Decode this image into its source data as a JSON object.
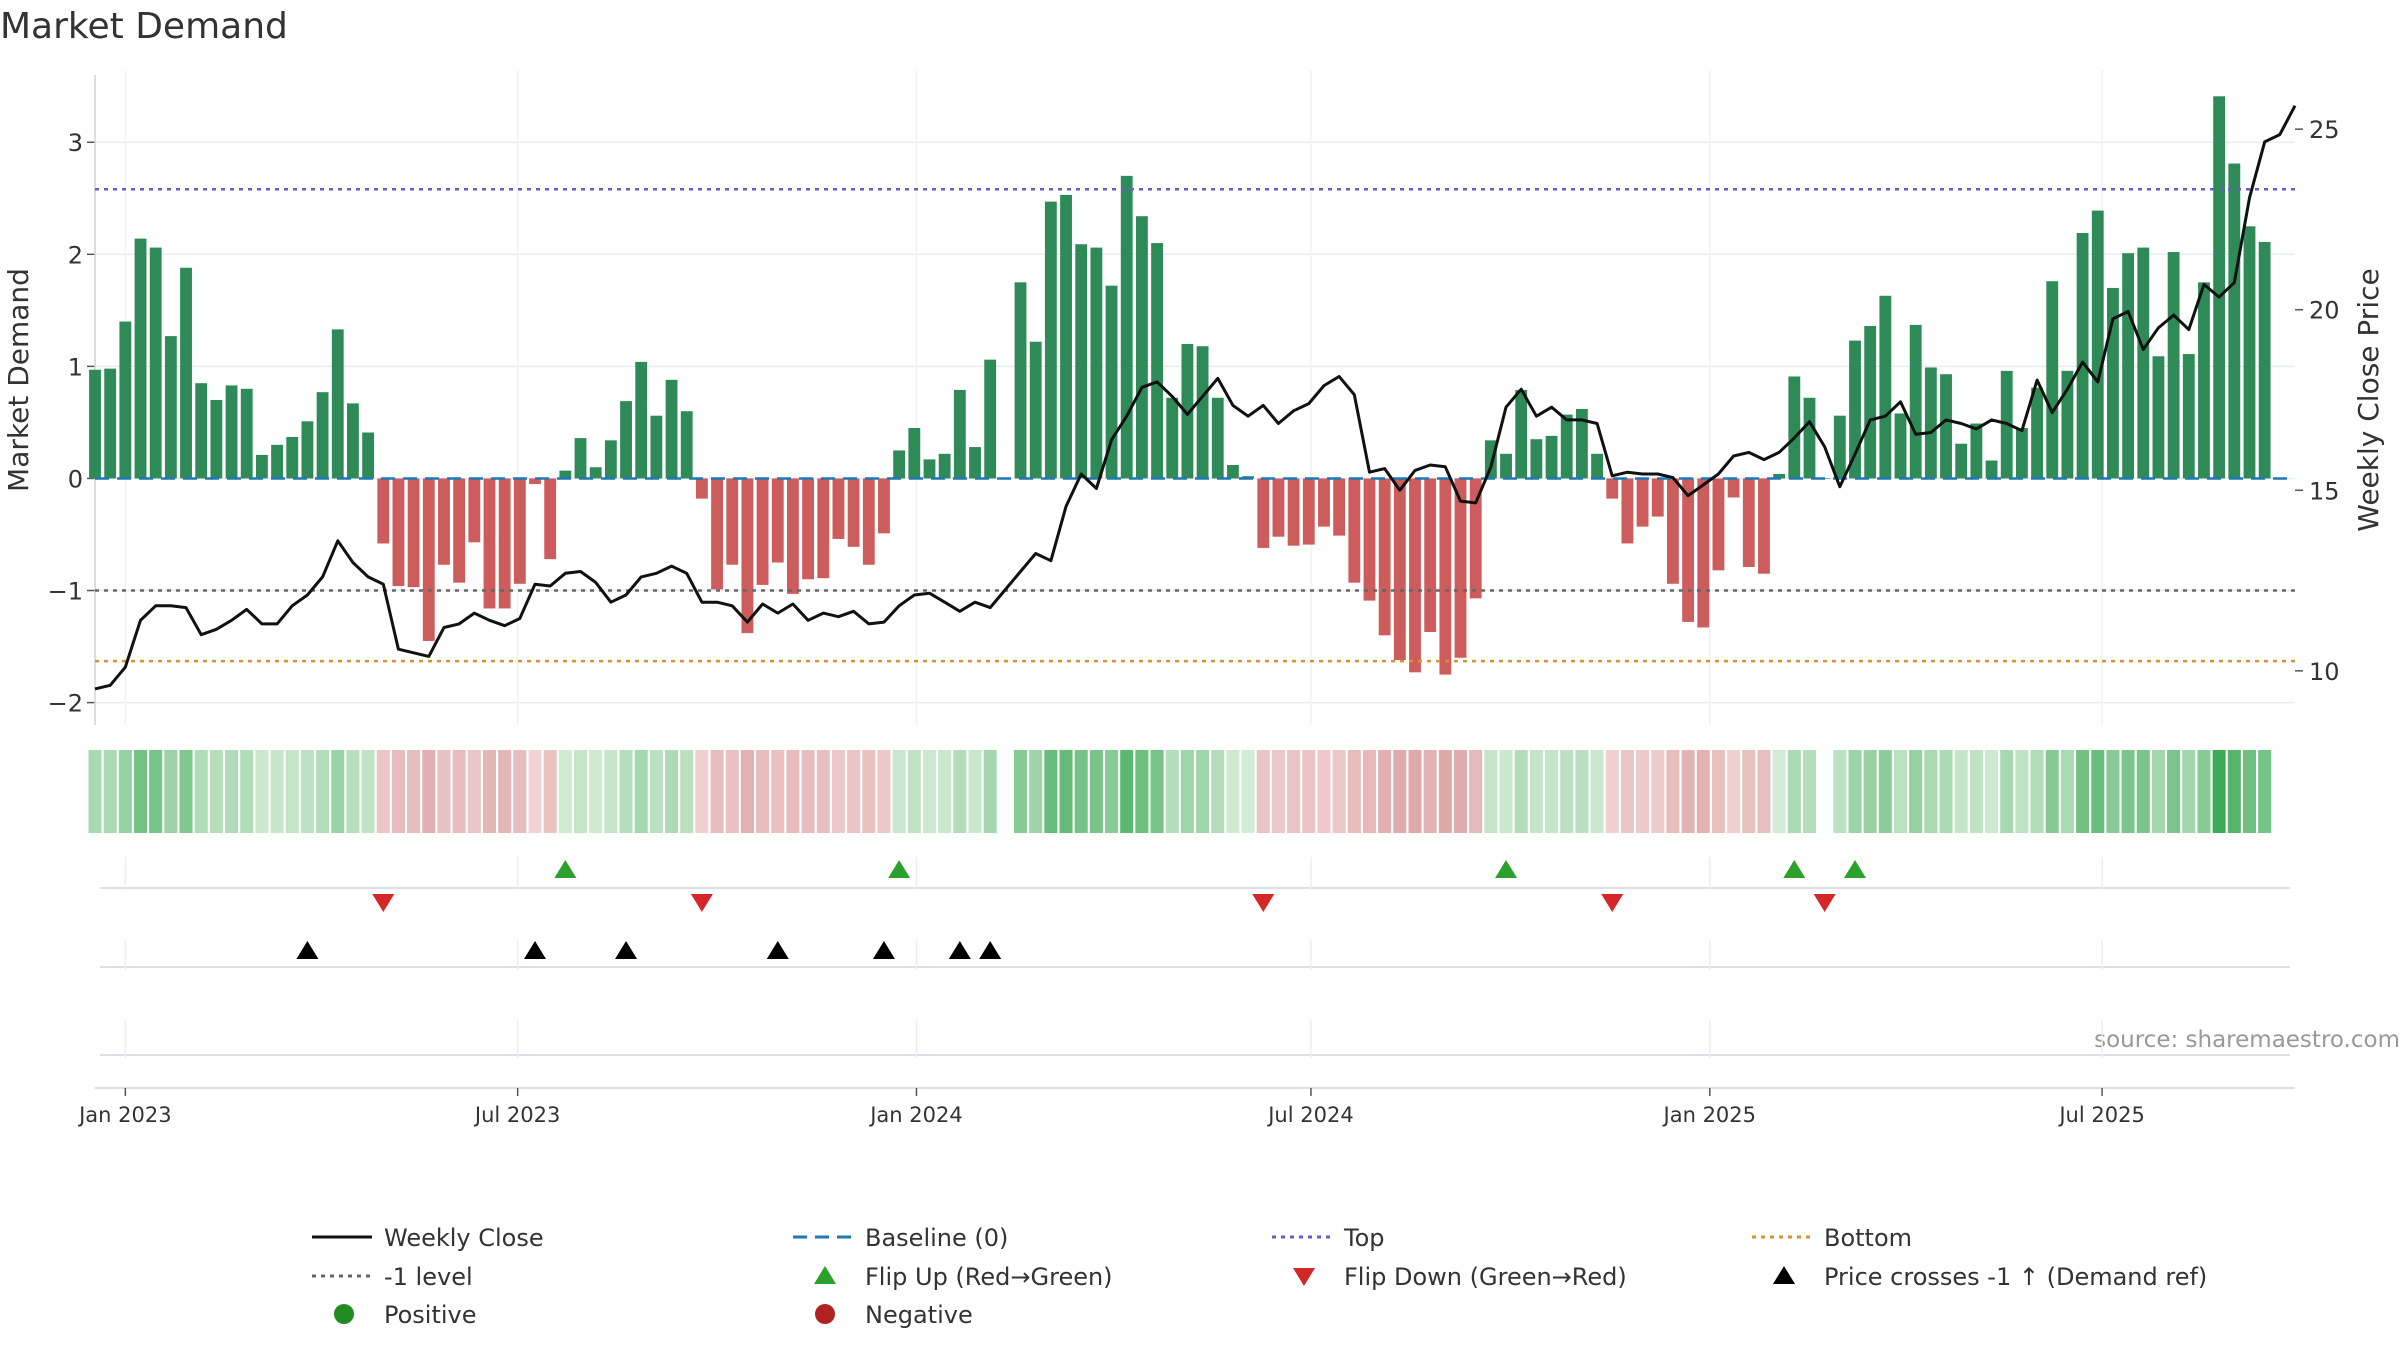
{
  "chart_data": {
    "type": "bar",
    "title": "Market Demand",
    "ylabel": "Market Demand",
    "y2label": "Weekly Close Price",
    "ylim": [
      -2.2,
      3.6
    ],
    "y2lim": [
      8.5,
      26.5
    ],
    "yticks": [
      -2,
      -1,
      0,
      1,
      2,
      3
    ],
    "y2ticks": [
      10,
      15,
      20,
      25
    ],
    "x_start": "2022-12-18",
    "x_end": "2025-09-28",
    "xticks": [
      {
        "label": "Jan 2023",
        "date": "2023-01-01"
      },
      {
        "label": "Jul 2023",
        "date": "2023-07-01"
      },
      {
        "label": "Jan 2024",
        "date": "2024-01-01"
      },
      {
        "label": "Jul 2024",
        "date": "2024-07-01"
      },
      {
        "label": "Jan 2025",
        "date": "2025-01-01"
      },
      {
        "label": "Jul 2025",
        "date": "2025-07-01"
      }
    ],
    "weeks_start": "2022-12-18",
    "demand": [
      0.97,
      0.98,
      1.4,
      2.14,
      2.06,
      1.27,
      1.88,
      0.85,
      0.7,
      0.83,
      0.8,
      0.21,
      0.3,
      0.37,
      0.51,
      0.77,
      1.33,
      0.67,
      0.41,
      -0.58,
      -0.96,
      -0.97,
      -1.45,
      -0.77,
      -0.93,
      -0.57,
      -1.16,
      -1.16,
      -0.94,
      -0.05,
      -0.72,
      0.07,
      0.36,
      0.1,
      0.34,
      0.69,
      1.04,
      0.56,
      0.88,
      0.6,
      -0.18,
      -0.99,
      -0.77,
      -1.38,
      -0.95,
      -0.75,
      -1.03,
      -0.9,
      -0.89,
      -0.54,
      -0.61,
      -0.77,
      -0.49,
      0.25,
      0.45,
      0.17,
      0.22,
      0.79,
      0.28,
      1.06,
      0.0,
      1.75,
      1.22,
      2.47,
      2.53,
      2.09,
      2.06,
      1.72,
      2.7,
      2.34,
      2.1,
      0.72,
      1.2,
      1.18,
      0.72,
      0.12,
      0.02,
      -0.62,
      -0.52,
      -0.6,
      -0.59,
      -0.43,
      -0.51,
      -0.93,
      -1.09,
      -1.4,
      -1.62,
      -1.73,
      -1.37,
      -1.75,
      -1.6,
      -1.07,
      0.34,
      0.22,
      0.79,
      0.35,
      0.38,
      0.57,
      0.62,
      0.22,
      -0.18,
      -0.58,
      -0.43,
      -0.34,
      -0.94,
      -1.28,
      -1.33,
      -0.82,
      -0.17,
      -0.79,
      -0.85,
      0.04,
      0.91,
      0.72,
      0.0,
      0.56,
      1.23,
      1.36,
      1.63,
      0.58,
      1.37,
      0.99,
      0.93,
      0.31,
      0.49,
      0.16,
      0.96,
      0.45,
      0.81,
      1.76,
      0.96,
      2.19,
      2.39,
      1.7,
      2.01,
      2.06,
      1.09,
      2.02,
      1.11,
      1.75,
      3.41,
      2.81,
      2.25,
      2.11
    ],
    "price": [
      9.5,
      9.6,
      10.1,
      11.4,
      11.8,
      11.8,
      11.75,
      11.0,
      11.15,
      11.4,
      11.7,
      11.3,
      11.3,
      11.8,
      12.1,
      12.6,
      13.6,
      13.0,
      12.6,
      12.4,
      10.6,
      10.5,
      10.4,
      11.2,
      11.3,
      11.6,
      11.4,
      11.25,
      11.45,
      12.4,
      12.35,
      12.7,
      12.75,
      12.45,
      11.9,
      12.1,
      12.6,
      12.7,
      12.9,
      12.7,
      11.9,
      11.9,
      11.8,
      11.35,
      11.85,
      11.6,
      11.85,
      11.4,
      11.6,
      11.5,
      11.65,
      11.3,
      11.35,
      11.8,
      12.1,
      12.15,
      11.9,
      11.65,
      11.9,
      11.75,
      12.25,
      12.75,
      13.25,
      13.05,
      14.55,
      15.45,
      15.05,
      16.4,
      17.05,
      17.85,
      18.0,
      17.6,
      17.1,
      17.6,
      18.1,
      17.35,
      17.05,
      17.35,
      16.85,
      17.2,
      17.4,
      17.9,
      18.15,
      17.65,
      15.5,
      15.6,
      15.0,
      15.55,
      15.7,
      15.65,
      14.7,
      14.65,
      15.65,
      17.3,
      17.8,
      17.05,
      17.3,
      16.95,
      16.95,
      16.85,
      15.4,
      15.5,
      15.45,
      15.45,
      15.35,
      14.85,
      15.15,
      15.45,
      15.95,
      16.05,
      15.85,
      16.05,
      16.45,
      16.9,
      16.2,
      15.1,
      16.0,
      16.95,
      17.05,
      17.45,
      16.55,
      16.6,
      16.95,
      16.85,
      16.7,
      16.95,
      16.85,
      16.65,
      18.05,
      17.15,
      17.8,
      18.55,
      18.0,
      19.75,
      19.95,
      18.9,
      19.5,
      19.85,
      19.45,
      20.7,
      20.35,
      20.75,
      23.1,
      24.65,
      24.85,
      25.65
    ],
    "top_level": 2.58,
    "bottom_level": -1.63,
    "minus1_level": -1,
    "baseline": 0,
    "flip_up_weeks": [
      31,
      53,
      93,
      112,
      116
    ],
    "flip_down_weeks": [
      19,
      40,
      77,
      100,
      114
    ],
    "price_cross_weeks": [
      14,
      29,
      35,
      45,
      52,
      57,
      59
    ],
    "colors": {
      "positive": "#2e8b57",
      "negative": "#cd5c5c",
      "price": "#111111",
      "baseline": "#1f77b4",
      "top": "#6a5acd",
      "bottom": "#d4952a",
      "minus1": "#666666",
      "flip_up": "#2ca02c",
      "flip_down": "#d62728",
      "cross": "#000000",
      "legend_positive": "#228b22",
      "legend_negative": "#b22222"
    },
    "legend": [
      {
        "label": "Weekly Close",
        "type": "line-solid",
        "color": "#111111"
      },
      {
        "label": "Baseline (0)",
        "type": "line-dash",
        "color": "#1f77b4"
      },
      {
        "label": "Top",
        "type": "line-dot",
        "color": "#6a5acd"
      },
      {
        "label": "Bottom",
        "type": "line-dot",
        "color": "#d4952a"
      },
      {
        "label": "-1 level",
        "type": "line-dot",
        "color": "#666666"
      },
      {
        "label": "Flip Up (Red→Green)",
        "type": "tri-up",
        "color": "#2ca02c"
      },
      {
        "label": "Flip Down (Green→Red)",
        "type": "tri-down",
        "color": "#d62728"
      },
      {
        "label": "Price crosses -1 ↑ (Demand ref)",
        "type": "tri-up",
        "color": "#000000"
      },
      {
        "label": "Positive",
        "type": "circle",
        "color": "#228b22"
      },
      {
        "label": "Negative",
        "type": "circle",
        "color": "#b22222"
      }
    ],
    "source_text": "source: sharemaestro.com"
  }
}
